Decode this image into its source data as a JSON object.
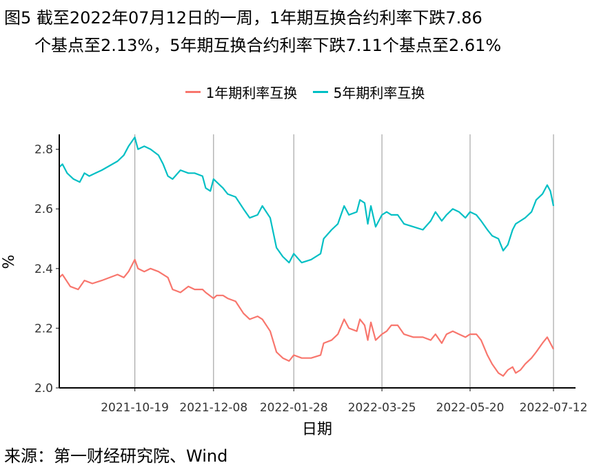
{
  "title_line1": "图5  截至2022年07月12日的一周，1年期互换合约利率下跌7.86",
  "title_line2": "个基点至2.13%，5年期互换合约利率下跌7.11个基点至2.61%",
  "source": "来源：第一财经研究院、Wind",
  "chart_data": {
    "type": "line",
    "xlabel": "日期",
    "ylabel": "%",
    "ylim": [
      2.0,
      2.85
    ],
    "yticks": [
      2.0,
      2.2,
      2.4,
      2.6,
      2.8
    ],
    "ytick_labels": [
      "2.0",
      "2.2",
      "2.4",
      "2.6",
      "2.8"
    ],
    "xlim": [
      "2021-09-01",
      "2022-07-26"
    ],
    "xticks": [
      "2021-10-19",
      "2021-12-08",
      "2022-01-28",
      "2022-03-25",
      "2022-05-20",
      "2022-07-12"
    ],
    "grid": "vertical lines at x ticks",
    "legend_position": "top",
    "series": [
      {
        "name": "1年期利率互换",
        "color": "#F8766D",
        "points": [
          [
            "2021-09-01",
            2.37
          ],
          [
            "2021-09-03",
            2.38
          ],
          [
            "2021-09-08",
            2.34
          ],
          [
            "2021-09-13",
            2.33
          ],
          [
            "2021-09-17",
            2.36
          ],
          [
            "2021-09-22",
            2.35
          ],
          [
            "2021-09-28",
            2.36
          ],
          [
            "2021-10-08",
            2.38
          ],
          [
            "2021-10-12",
            2.37
          ],
          [
            "2021-10-15",
            2.39
          ],
          [
            "2021-10-19",
            2.43
          ],
          [
            "2021-10-21",
            2.4
          ],
          [
            "2021-10-25",
            2.39
          ],
          [
            "2021-10-29",
            2.4
          ],
          [
            "2021-11-03",
            2.39
          ],
          [
            "2021-11-09",
            2.37
          ],
          [
            "2021-11-12",
            2.33
          ],
          [
            "2021-11-17",
            2.32
          ],
          [
            "2021-11-22",
            2.34
          ],
          [
            "2021-11-26",
            2.33
          ],
          [
            "2021-12-01",
            2.33
          ],
          [
            "2021-12-03",
            2.32
          ],
          [
            "2021-12-08",
            2.3
          ],
          [
            "2021-12-10",
            2.31
          ],
          [
            "2021-12-14",
            2.31
          ],
          [
            "2021-12-17",
            2.3
          ],
          [
            "2021-12-22",
            2.29
          ],
          [
            "2021-12-27",
            2.25
          ],
          [
            "2021-12-31",
            2.23
          ],
          [
            "2022-01-05",
            2.24
          ],
          [
            "2022-01-08",
            2.23
          ],
          [
            "2022-01-13",
            2.19
          ],
          [
            "2022-01-17",
            2.12
          ],
          [
            "2022-01-21",
            2.1
          ],
          [
            "2022-01-25",
            2.09
          ],
          [
            "2022-01-28",
            2.11
          ],
          [
            "2022-02-02",
            2.1
          ],
          [
            "2022-02-08",
            2.1
          ],
          [
            "2022-02-14",
            2.11
          ],
          [
            "2022-02-16",
            2.15
          ],
          [
            "2022-02-21",
            2.16
          ],
          [
            "2022-02-25",
            2.18
          ],
          [
            "2022-03-01",
            2.23
          ],
          [
            "2022-03-04",
            2.2
          ],
          [
            "2022-03-09",
            2.19
          ],
          [
            "2022-03-11",
            2.23
          ],
          [
            "2022-03-14",
            2.21
          ],
          [
            "2022-03-16",
            2.16
          ],
          [
            "2022-03-18",
            2.22
          ],
          [
            "2022-03-21",
            2.16
          ],
          [
            "2022-03-25",
            2.18
          ],
          [
            "2022-03-28",
            2.19
          ],
          [
            "2022-03-31",
            2.21
          ],
          [
            "2022-04-04",
            2.21
          ],
          [
            "2022-04-08",
            2.18
          ],
          [
            "2022-04-14",
            2.17
          ],
          [
            "2022-04-20",
            2.17
          ],
          [
            "2022-04-25",
            2.16
          ],
          [
            "2022-04-28",
            2.18
          ],
          [
            "2022-05-02",
            2.15
          ],
          [
            "2022-05-05",
            2.18
          ],
          [
            "2022-05-09",
            2.19
          ],
          [
            "2022-05-13",
            2.18
          ],
          [
            "2022-05-17",
            2.17
          ],
          [
            "2022-05-20",
            2.18
          ],
          [
            "2022-05-24",
            2.18
          ],
          [
            "2022-05-27",
            2.16
          ],
          [
            "2022-05-31",
            2.11
          ],
          [
            "2022-06-03",
            2.08
          ],
          [
            "2022-06-07",
            2.05
          ],
          [
            "2022-06-10",
            2.04
          ],
          [
            "2022-06-13",
            2.06
          ],
          [
            "2022-06-16",
            2.07
          ],
          [
            "2022-06-18",
            2.05
          ],
          [
            "2022-06-21",
            2.06
          ],
          [
            "2022-06-24",
            2.08
          ],
          [
            "2022-06-28",
            2.1
          ],
          [
            "2022-07-01",
            2.12
          ],
          [
            "2022-07-05",
            2.15
          ],
          [
            "2022-07-08",
            2.17
          ],
          [
            "2022-07-10",
            2.15
          ],
          [
            "2022-07-12",
            2.13
          ]
        ]
      },
      {
        "name": "5年期利率互换",
        "color": "#00BFC4",
        "points": [
          [
            "2021-09-01",
            2.74
          ],
          [
            "2021-09-03",
            2.75
          ],
          [
            "2021-09-06",
            2.72
          ],
          [
            "2021-09-10",
            2.7
          ],
          [
            "2021-09-14",
            2.69
          ],
          [
            "2021-09-17",
            2.72
          ],
          [
            "2021-09-20",
            2.71
          ],
          [
            "2021-09-24",
            2.72
          ],
          [
            "2021-09-28",
            2.73
          ],
          [
            "2021-10-08",
            2.76
          ],
          [
            "2021-10-12",
            2.78
          ],
          [
            "2021-10-15",
            2.81
          ],
          [
            "2021-10-19",
            2.84
          ],
          [
            "2021-10-21",
            2.8
          ],
          [
            "2021-10-25",
            2.81
          ],
          [
            "2021-10-29",
            2.8
          ],
          [
            "2021-11-03",
            2.78
          ],
          [
            "2021-11-06",
            2.75
          ],
          [
            "2021-11-09",
            2.71
          ],
          [
            "2021-11-12",
            2.7
          ],
          [
            "2021-11-17",
            2.73
          ],
          [
            "2021-11-22",
            2.72
          ],
          [
            "2021-11-26",
            2.72
          ],
          [
            "2021-12-01",
            2.71
          ],
          [
            "2021-12-03",
            2.67
          ],
          [
            "2021-12-06",
            2.66
          ],
          [
            "2021-12-08",
            2.7
          ],
          [
            "2021-12-10",
            2.69
          ],
          [
            "2021-12-14",
            2.67
          ],
          [
            "2021-12-17",
            2.65
          ],
          [
            "2021-12-22",
            2.64
          ],
          [
            "2021-12-27",
            2.6
          ],
          [
            "2021-12-31",
            2.57
          ],
          [
            "2022-01-05",
            2.58
          ],
          [
            "2022-01-08",
            2.61
          ],
          [
            "2022-01-13",
            2.57
          ],
          [
            "2022-01-17",
            2.47
          ],
          [
            "2022-01-21",
            2.44
          ],
          [
            "2022-01-25",
            2.42
          ],
          [
            "2022-01-28",
            2.45
          ],
          [
            "2022-02-02",
            2.42
          ],
          [
            "2022-02-08",
            2.43
          ],
          [
            "2022-02-14",
            2.45
          ],
          [
            "2022-02-16",
            2.5
          ],
          [
            "2022-02-21",
            2.53
          ],
          [
            "2022-02-25",
            2.55
          ],
          [
            "2022-03-01",
            2.61
          ],
          [
            "2022-03-04",
            2.58
          ],
          [
            "2022-03-09",
            2.59
          ],
          [
            "2022-03-11",
            2.63
          ],
          [
            "2022-03-14",
            2.62
          ],
          [
            "2022-03-16",
            2.55
          ],
          [
            "2022-03-18",
            2.61
          ],
          [
            "2022-03-21",
            2.54
          ],
          [
            "2022-03-25",
            2.58
          ],
          [
            "2022-03-28",
            2.59
          ],
          [
            "2022-03-31",
            2.58
          ],
          [
            "2022-04-04",
            2.58
          ],
          [
            "2022-04-08",
            2.55
          ],
          [
            "2022-04-14",
            2.54
          ],
          [
            "2022-04-20",
            2.53
          ],
          [
            "2022-04-25",
            2.56
          ],
          [
            "2022-04-28",
            2.59
          ],
          [
            "2022-05-02",
            2.56
          ],
          [
            "2022-05-05",
            2.58
          ],
          [
            "2022-05-09",
            2.6
          ],
          [
            "2022-05-13",
            2.59
          ],
          [
            "2022-05-17",
            2.57
          ],
          [
            "2022-05-20",
            2.59
          ],
          [
            "2022-05-24",
            2.58
          ],
          [
            "2022-05-27",
            2.56
          ],
          [
            "2022-05-31",
            2.53
          ],
          [
            "2022-06-03",
            2.51
          ],
          [
            "2022-06-07",
            2.5
          ],
          [
            "2022-06-10",
            2.46
          ],
          [
            "2022-06-13",
            2.48
          ],
          [
            "2022-06-16",
            2.53
          ],
          [
            "2022-06-18",
            2.55
          ],
          [
            "2022-06-21",
            2.56
          ],
          [
            "2022-06-24",
            2.57
          ],
          [
            "2022-06-28",
            2.59
          ],
          [
            "2022-07-01",
            2.63
          ],
          [
            "2022-07-05",
            2.65
          ],
          [
            "2022-07-08",
            2.68
          ],
          [
            "2022-07-10",
            2.66
          ],
          [
            "2022-07-12",
            2.61
          ]
        ]
      }
    ]
  }
}
